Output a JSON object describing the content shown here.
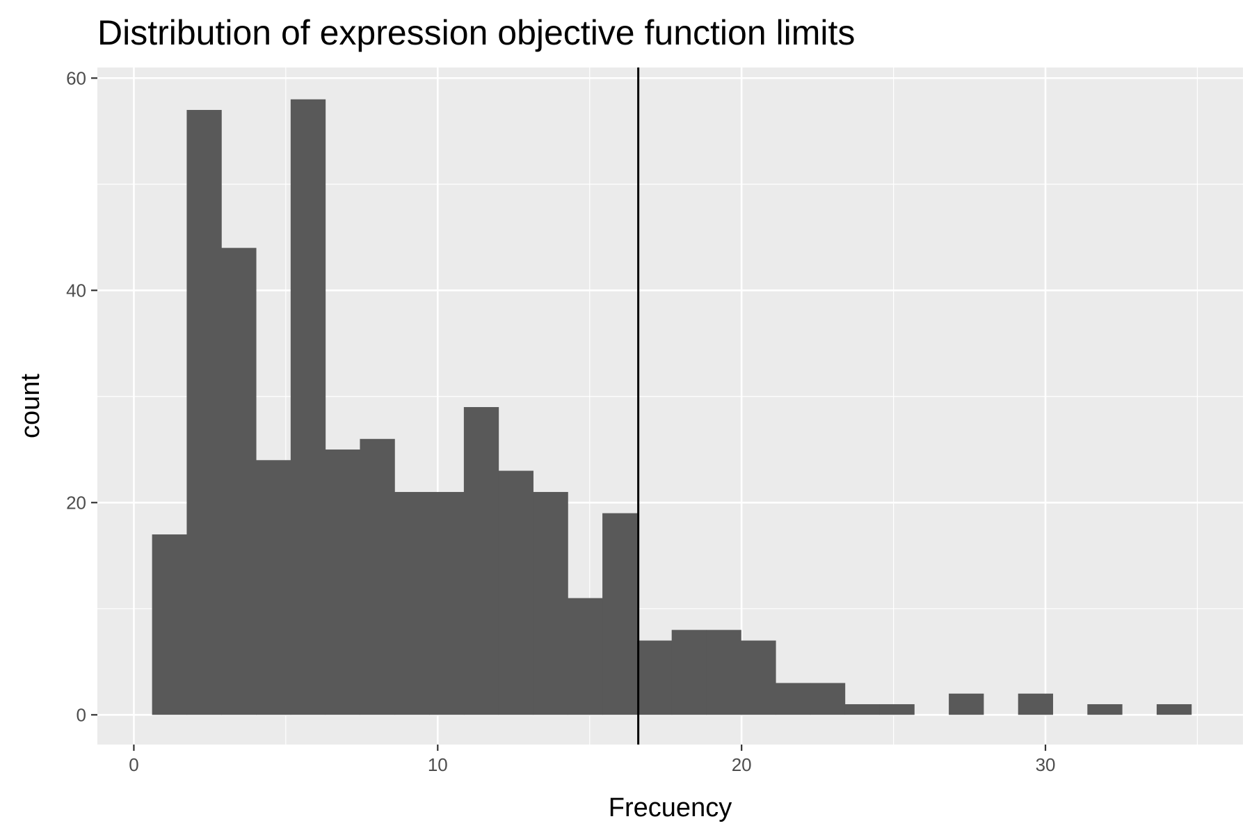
{
  "chart_data": {
    "type": "bar",
    "subtype": "histogram",
    "title": "Distribution of expression objective function limits",
    "xlabel": "Frecuency",
    "ylabel": "count",
    "xlim": [
      -1.2,
      36.5
    ],
    "ylim": [
      -2.8,
      61
    ],
    "x_ticks": [
      0,
      10,
      20,
      30
    ],
    "y_ticks": [
      0,
      20,
      40,
      60
    ],
    "grid": true,
    "bin_width": 1.14,
    "bins": [
      {
        "start": 0.6,
        "end": 1.74,
        "count": 17
      },
      {
        "start": 1.74,
        "end": 2.88,
        "count": 57
      },
      {
        "start": 2.88,
        "end": 4.02,
        "count": 44
      },
      {
        "start": 4.02,
        "end": 5.16,
        "count": 24
      },
      {
        "start": 5.16,
        "end": 6.3,
        "count": 58
      },
      {
        "start": 6.3,
        "end": 7.44,
        "count": 25
      },
      {
        "start": 7.44,
        "end": 8.58,
        "count": 26
      },
      {
        "start": 8.58,
        "end": 9.72,
        "count": 21
      },
      {
        "start": 9.72,
        "end": 10.86,
        "count": 21
      },
      {
        "start": 10.86,
        "end": 12.0,
        "count": 29
      },
      {
        "start": 12.0,
        "end": 13.14,
        "count": 23
      },
      {
        "start": 13.14,
        "end": 14.28,
        "count": 21
      },
      {
        "start": 14.28,
        "end": 15.42,
        "count": 11
      },
      {
        "start": 15.42,
        "end": 16.56,
        "count": 19
      },
      {
        "start": 16.56,
        "end": 17.7,
        "count": 7
      },
      {
        "start": 17.7,
        "end": 18.84,
        "count": 8
      },
      {
        "start": 18.84,
        "end": 19.98,
        "count": 8
      },
      {
        "start": 19.98,
        "end": 21.12,
        "count": 7
      },
      {
        "start": 21.12,
        "end": 22.26,
        "count": 3
      },
      {
        "start": 22.26,
        "end": 23.4,
        "count": 3
      },
      {
        "start": 23.4,
        "end": 24.54,
        "count": 1
      },
      {
        "start": 24.54,
        "end": 25.68,
        "count": 1
      },
      {
        "start": 25.68,
        "end": 26.82,
        "count": 0
      },
      {
        "start": 26.82,
        "end": 27.96,
        "count": 2
      },
      {
        "start": 27.96,
        "end": 29.1,
        "count": 0
      },
      {
        "start": 29.1,
        "end": 30.24,
        "count": 2
      },
      {
        "start": 30.24,
        "end": 31.38,
        "count": 0
      },
      {
        "start": 31.38,
        "end": 32.52,
        "count": 1
      },
      {
        "start": 32.52,
        "end": 33.66,
        "count": 0
      },
      {
        "start": 33.66,
        "end": 34.8,
        "count": 1
      }
    ],
    "vline": 16.6,
    "colors": {
      "panel": "#ebebeb",
      "grid": "#ffffff",
      "bar": "#595959",
      "vline": "#000000"
    }
  }
}
